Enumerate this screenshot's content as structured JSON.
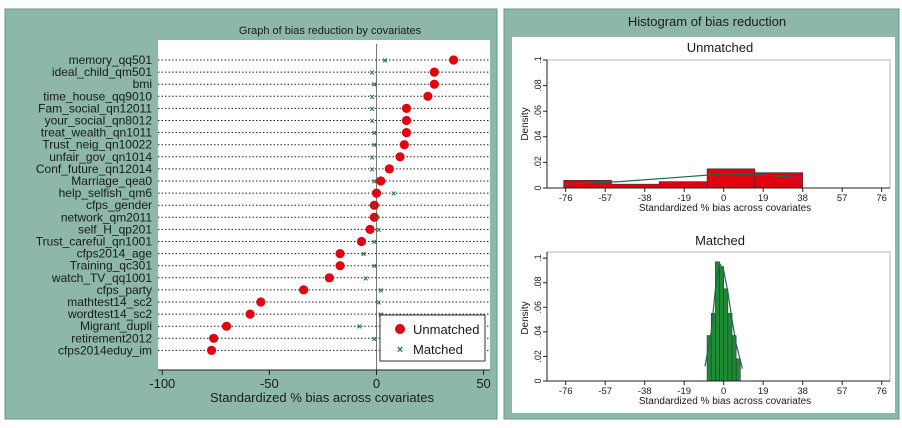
{
  "chart_data": [
    {
      "type": "scatter",
      "title": "Graph of bias reduction by covariates",
      "xlabel": "Standardized % bias across covariates",
      "xlim": [
        -102,
        53
      ],
      "xticks": [
        -100,
        -50,
        0,
        50
      ],
      "legend_position": "bottom-right",
      "series": [
        {
          "name": "Unmatched",
          "color": "#e3000f"
        },
        {
          "name": "Matched",
          "color": "#1a7a3a"
        }
      ],
      "covariates": [
        {
          "label": "memory_qq501",
          "unmatched": 36,
          "matched": 4
        },
        {
          "label": "ideal_child_qm501",
          "unmatched": 27,
          "matched": -2
        },
        {
          "label": "bmi",
          "unmatched": 27,
          "matched": -1
        },
        {
          "label": "time_house_qq9010",
          "unmatched": 24,
          "matched": -2
        },
        {
          "label": "Fam_social_qn12011",
          "unmatched": 14,
          "matched": -2
        },
        {
          "label": "your_social_qn8012",
          "unmatched": 14,
          "matched": -2
        },
        {
          "label": "treat_wealth_qn1011",
          "unmatched": 14,
          "matched": -1
        },
        {
          "label": "Trust_neig_qn10022",
          "unmatched": 13,
          "matched": -1
        },
        {
          "label": "unfair_gov_qn1014",
          "unmatched": 11,
          "matched": -2
        },
        {
          "label": "Conf_future_qn12014",
          "unmatched": 6,
          "matched": -2
        },
        {
          "label": "Marriage_qea0",
          "unmatched": 2,
          "matched": -1
        },
        {
          "label": "help_selfish_qm6",
          "unmatched": 0,
          "matched": 8
        },
        {
          "label": "cfps_gender",
          "unmatched": -1,
          "matched": -1
        },
        {
          "label": "network_qm2011",
          "unmatched": -1,
          "matched": 0
        },
        {
          "label": "self_H_qp201",
          "unmatched": -3,
          "matched": 1
        },
        {
          "label": "Trust_careful_qn1001",
          "unmatched": -7,
          "matched": -1
        },
        {
          "label": "cfps2014_age",
          "unmatched": -17,
          "matched": -6
        },
        {
          "label": "Training_qc301",
          "unmatched": -17,
          "matched": -1
        },
        {
          "label": "watch_TV_qq1001",
          "unmatched": -22,
          "matched": -5
        },
        {
          "label": "cfps_party",
          "unmatched": -34,
          "matched": 2
        },
        {
          "label": "mathtest14_sc2",
          "unmatched": -54,
          "matched": 1
        },
        {
          "label": "wordtest14_sc2",
          "unmatched": -59,
          "matched": 2
        },
        {
          "label": "Migrant_dupli",
          "unmatched": -70,
          "matched": -8
        },
        {
          "label": "retirement2012",
          "unmatched": -76,
          "matched": -1
        },
        {
          "label": "cfps2014eduy_im",
          "unmatched": -77,
          "matched": 7
        }
      ]
    },
    {
      "type": "bar",
      "title": "Histogram of bias reduction",
      "subtitle": "Unmatched",
      "xlabel": "Standardized % bias across covariates",
      "ylabel": "Density",
      "xlim": [
        -85,
        80
      ],
      "ylim": [
        0,
        0.1
      ],
      "xticks": [
        -76,
        -57,
        -38,
        -19,
        0,
        19,
        38,
        57,
        76
      ],
      "yticks": [
        0,
        0.02,
        0.04,
        0.06,
        0.08,
        0.1
      ],
      "ytick_labels": [
        "0",
        ".02",
        ".04",
        ".06",
        ".08",
        ".1"
      ],
      "bar_color": "#e3000f",
      "bins": [
        {
          "from": -77,
          "to": -54,
          "density": 0.006
        },
        {
          "from": -54,
          "to": -31,
          "density": 0.003
        },
        {
          "from": -31,
          "to": -8,
          "density": 0.005
        },
        {
          "from": -8,
          "to": 15,
          "density": 0.015
        },
        {
          "from": 15,
          "to": 38,
          "density": 0.012
        }
      ],
      "density_curve": [
        [
          -77,
          0.003
        ],
        [
          -50,
          0.005
        ],
        [
          -25,
          0.008
        ],
        [
          0,
          0.011
        ],
        [
          20,
          0.01
        ],
        [
          38,
          0.008
        ]
      ]
    },
    {
      "type": "bar",
      "subtitle": "Matched",
      "xlabel": "Standardized % bias across covariates",
      "ylabel": "Density",
      "xlim": [
        -85,
        80
      ],
      "ylim": [
        0,
        0.105
      ],
      "xticks": [
        -76,
        -57,
        -38,
        -19,
        0,
        19,
        38,
        57,
        76
      ],
      "yticks": [
        0,
        0.02,
        0.04,
        0.06,
        0.08,
        0.1
      ],
      "ytick_labels": [
        "0",
        ".02",
        ".04",
        ".06",
        ".08",
        ".1"
      ],
      "bar_color": "#1e8a33",
      "bins": [
        {
          "from": -8,
          "to": -6,
          "density": 0.037
        },
        {
          "from": -6,
          "to": -4,
          "density": 0.055
        },
        {
          "from": -4,
          "to": -2,
          "density": 0.097
        },
        {
          "from": -2,
          "to": 0,
          "density": 0.093
        },
        {
          "from": 0,
          "to": 2,
          "density": 0.075
        },
        {
          "from": 2,
          "to": 4,
          "density": 0.055
        },
        {
          "from": 4,
          "to": 6,
          "density": 0.037
        },
        {
          "from": 6,
          "to": 8,
          "density": 0.018
        }
      ],
      "density_curve": [
        [
          -9,
          0.012
        ],
        [
          -6,
          0.04
        ],
        [
          -4,
          0.075
        ],
        [
          -2,
          0.096
        ],
        [
          0,
          0.09
        ],
        [
          2,
          0.072
        ],
        [
          4,
          0.05
        ],
        [
          6,
          0.03
        ],
        [
          9,
          0.01
        ]
      ]
    }
  ]
}
